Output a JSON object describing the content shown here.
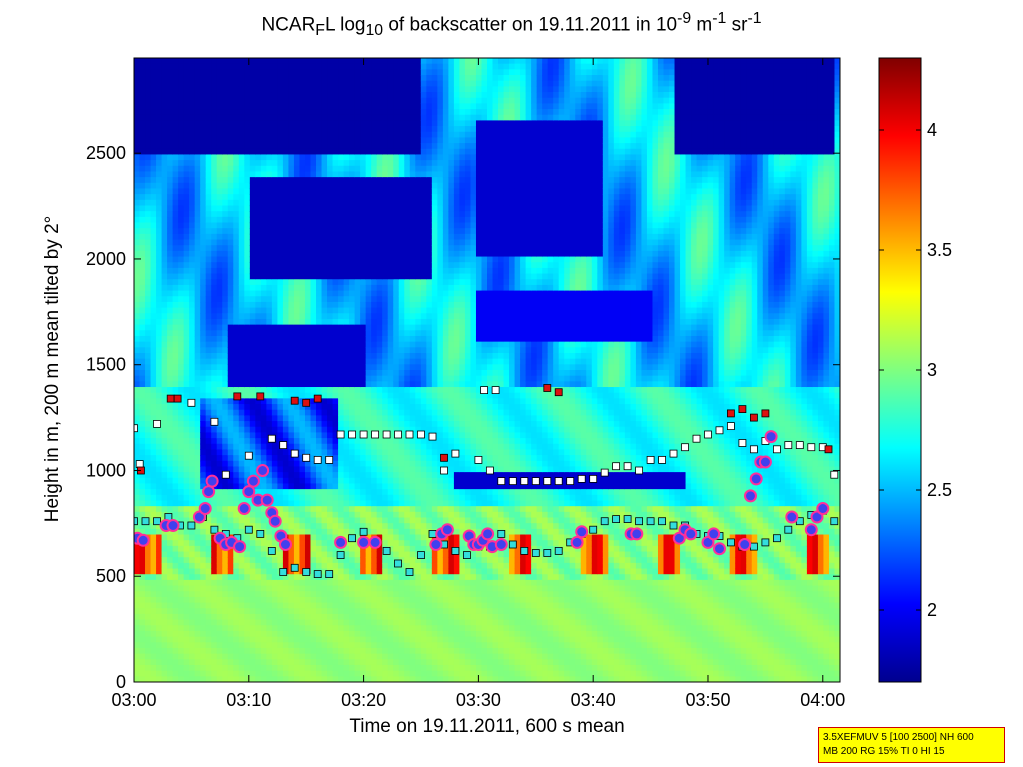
{
  "chart_data": {
    "type": "heatmap",
    "title_parts": {
      "a": "NCAR",
      "a_sub": "F",
      "b": "L log",
      "b_sub": "10",
      "c": " of backscatter on 19.11.2011 in 10",
      "c_sup": "-9",
      "d": " m",
      "d_sup": "-1",
      "e": " sr",
      "e_sup": "-1"
    },
    "xlabel": "Time on 19.11.2011, 600 s mean",
    "ylabel": "Height in m, 200 m mean tilted by 2°",
    "x_range_min": [
      0,
      61.5
    ],
    "x_ticks": [
      {
        "v": 0,
        "label": "03:00"
      },
      {
        "v": 10,
        "label": "03:10"
      },
      {
        "v": 20,
        "label": "03:20"
      },
      {
        "v": 30,
        "label": "03:30"
      },
      {
        "v": 40,
        "label": "03:40"
      },
      {
        "v": 50,
        "label": "03:50"
      },
      {
        "v": 60,
        "label": "04:00"
      }
    ],
    "ylim": [
      0,
      2950
    ],
    "y_ticks": [
      0,
      500,
      1000,
      1500,
      2000,
      2500
    ],
    "colorbar": {
      "range": [
        1.7,
        4.3
      ],
      "ticks": [
        2,
        2.5,
        3,
        3.5,
        4
      ],
      "tick_labels": [
        "2",
        "2.5",
        "3",
        "3.5",
        "4"
      ],
      "colormap": "jet"
    },
    "marker_series": [
      {
        "marker": "cyan-square",
        "color": "#33dddd",
        "points": [
          [
            0,
            760
          ],
          [
            1,
            760
          ],
          [
            2,
            760
          ],
          [
            3,
            780
          ],
          [
            4,
            740
          ],
          [
            5,
            740
          ],
          [
            6,
            780
          ],
          [
            7,
            720
          ],
          [
            8,
            700
          ],
          [
            9,
            680
          ],
          [
            10,
            720
          ],
          [
            11,
            700
          ],
          [
            12,
            620
          ],
          [
            13,
            520
          ],
          [
            14,
            540
          ],
          [
            15,
            520
          ],
          [
            16,
            510
          ],
          [
            17,
            510
          ],
          [
            18,
            600
          ],
          [
            19,
            680
          ],
          [
            20,
            710
          ],
          [
            21,
            660
          ],
          [
            22,
            620
          ],
          [
            23,
            560
          ],
          [
            24,
            520
          ],
          [
            25,
            600
          ],
          [
            26,
            700
          ],
          [
            27,
            650
          ],
          [
            28,
            620
          ],
          [
            29,
            600
          ],
          [
            30,
            640
          ],
          [
            31,
            640
          ],
          [
            32,
            700
          ],
          [
            33,
            650
          ],
          [
            34,
            620
          ],
          [
            35,
            610
          ],
          [
            36,
            610
          ],
          [
            37,
            620
          ],
          [
            38,
            660
          ],
          [
            39,
            700
          ],
          [
            40,
            720
          ],
          [
            41,
            760
          ],
          [
            42,
            770
          ],
          [
            43,
            770
          ],
          [
            44,
            760
          ],
          [
            45,
            760
          ],
          [
            46,
            760
          ],
          [
            47,
            740
          ],
          [
            48,
            740
          ],
          [
            49,
            700
          ],
          [
            50,
            690
          ],
          [
            51,
            690
          ],
          [
            52,
            660
          ],
          [
            53,
            640
          ],
          [
            54,
            640
          ],
          [
            55,
            660
          ],
          [
            56,
            680
          ],
          [
            57,
            720
          ],
          [
            58,
            760
          ],
          [
            59,
            790
          ],
          [
            60,
            810
          ],
          [
            61,
            760
          ]
        ]
      },
      {
        "marker": "white-square",
        "color": "#ffffff",
        "points": [
          [
            0,
            1200
          ],
          [
            0.5,
            1030
          ],
          [
            2,
            1220
          ],
          [
            5,
            1320
          ],
          [
            7,
            1230
          ],
          [
            8,
            980
          ],
          [
            10,
            1070
          ],
          [
            12,
            1150
          ],
          [
            13,
            1120
          ],
          [
            14,
            1080
          ],
          [
            15,
            1060
          ],
          [
            16,
            1050
          ],
          [
            17,
            1050
          ],
          [
            18,
            1170
          ],
          [
            19,
            1170
          ],
          [
            20,
            1170
          ],
          [
            21,
            1170
          ],
          [
            22,
            1170
          ],
          [
            23,
            1170
          ],
          [
            24,
            1170
          ],
          [
            25,
            1170
          ],
          [
            26,
            1160
          ],
          [
            27,
            1000
          ],
          [
            28,
            1080
          ],
          [
            30,
            1050
          ],
          [
            31,
            1000
          ],
          [
            32,
            950
          ],
          [
            33,
            950
          ],
          [
            34,
            950
          ],
          [
            35,
            950
          ],
          [
            36,
            950
          ],
          [
            37,
            950
          ],
          [
            38,
            950
          ],
          [
            39,
            960
          ],
          [
            40,
            960
          ],
          [
            41,
            990
          ],
          [
            42,
            1020
          ],
          [
            43,
            1020
          ],
          [
            44,
            1000
          ],
          [
            45,
            1050
          ],
          [
            46,
            1050
          ],
          [
            47,
            1080
          ],
          [
            48,
            1110
          ],
          [
            49,
            1150
          ],
          [
            50,
            1170
          ],
          [
            51,
            1190
          ],
          [
            52,
            1210
          ],
          [
            53,
            1130
          ],
          [
            54,
            1100
          ],
          [
            55,
            1140
          ],
          [
            56,
            1100
          ],
          [
            57,
            1120
          ],
          [
            58,
            1120
          ],
          [
            59,
            1110
          ],
          [
            60,
            1110
          ],
          [
            61,
            980
          ],
          [
            30.5,
            1380
          ],
          [
            31.5,
            1380
          ]
        ]
      },
      {
        "marker": "red-square",
        "color": "#dd1010",
        "points": [
          [
            0.6,
            1000
          ],
          [
            3.2,
            1340
          ],
          [
            3.8,
            1340
          ],
          [
            9,
            1350
          ],
          [
            11,
            1350
          ],
          [
            14,
            1330
          ],
          [
            15,
            1320
          ],
          [
            16,
            1340
          ],
          [
            27,
            1060
          ],
          [
            36,
            1390
          ],
          [
            37,
            1370
          ],
          [
            52,
            1270
          ],
          [
            53,
            1290
          ],
          [
            54,
            1250
          ],
          [
            55,
            1270
          ],
          [
            60.5,
            1100
          ]
        ]
      },
      {
        "marker": "purple-circle",
        "color": "#4040ee",
        "points": [
          [
            0.3,
            680
          ],
          [
            0.8,
            670
          ],
          [
            2.8,
            740
          ],
          [
            3.4,
            740
          ],
          [
            5.7,
            780
          ],
          [
            6.2,
            820
          ],
          [
            6.5,
            900
          ],
          [
            6.8,
            950
          ],
          [
            7.5,
            680
          ],
          [
            8,
            650
          ],
          [
            8.5,
            660
          ],
          [
            9.2,
            640
          ],
          [
            9.6,
            820
          ],
          [
            10,
            900
          ],
          [
            10.4,
            950
          ],
          [
            10.8,
            860
          ],
          [
            11.2,
            1000
          ],
          [
            11.6,
            860
          ],
          [
            12,
            800
          ],
          [
            12.3,
            760
          ],
          [
            12.8,
            690
          ],
          [
            13.2,
            650
          ],
          [
            18,
            660
          ],
          [
            20,
            660
          ],
          [
            21,
            660
          ],
          [
            26.3,
            650
          ],
          [
            26.8,
            700
          ],
          [
            27.3,
            720
          ],
          [
            29.2,
            690
          ],
          [
            29.6,
            650
          ],
          [
            30,
            650
          ],
          [
            30.4,
            670
          ],
          [
            30.8,
            700
          ],
          [
            31.2,
            640
          ],
          [
            32,
            650
          ],
          [
            38.6,
            660
          ],
          [
            39,
            710
          ],
          [
            43.3,
            700
          ],
          [
            43.8,
            700
          ],
          [
            47.5,
            680
          ],
          [
            48,
            720
          ],
          [
            48.5,
            700
          ],
          [
            50,
            660
          ],
          [
            50.5,
            700
          ],
          [
            51,
            630
          ],
          [
            53.2,
            650
          ],
          [
            53.7,
            880
          ],
          [
            54.2,
            960
          ],
          [
            54.6,
            1040
          ],
          [
            55,
            1040
          ],
          [
            55.5,
            1160
          ],
          [
            57.3,
            780
          ],
          [
            59,
            720
          ],
          [
            59.5,
            780
          ],
          [
            60,
            820
          ]
        ]
      }
    ]
  },
  "stamp": {
    "line1": "3.5XEFMUV 5 [100 2500] NH 600",
    "line2": "MB 200 RG 15% TI 0 HI 15"
  }
}
